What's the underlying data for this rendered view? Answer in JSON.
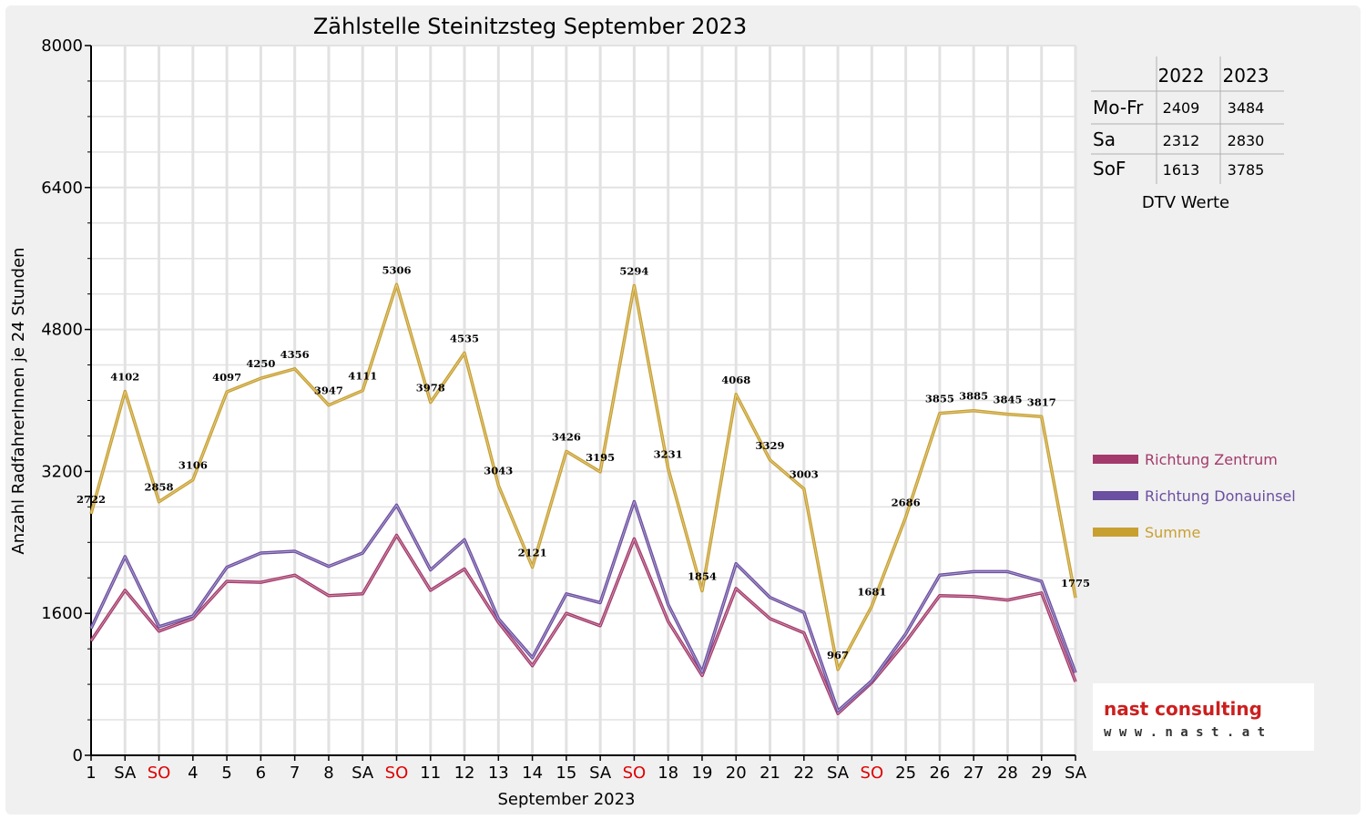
{
  "chart_data": {
    "type": "line",
    "title": "Zählstelle Steinitzsteg September 2023",
    "xlabel": "September 2023",
    "ylabel": "Anzahl RadfahrerInnen je 24 Stunden",
    "ylim": [
      0,
      8000
    ],
    "yticks": [
      "0",
      "1600",
      "3200",
      "4800",
      "6400",
      "8000"
    ],
    "grid": true,
    "legend_position": "right",
    "categories": [
      "1",
      "SA",
      "SO",
      "4",
      "5",
      "6",
      "7",
      "8",
      "SA",
      "SO",
      "11",
      "12",
      "13",
      "14",
      "15",
      "SA",
      "SO",
      "18",
      "19",
      "20",
      "21",
      "22",
      "SA",
      "SO",
      "25",
      "26",
      "27",
      "28",
      "29",
      "SA"
    ],
    "highlight_categories": [
      "SO"
    ],
    "highlight_color": "#e00000",
    "series": [
      {
        "name": "Richtung Zentrum",
        "color": "#a33a6b",
        "values": [
          1290,
          1860,
          1400,
          1540,
          1960,
          1950,
          2030,
          1800,
          1820,
          2480,
          1860,
          2100,
          1500,
          1010,
          1600,
          1460,
          2440,
          1510,
          900,
          1880,
          1540,
          1380,
          470,
          820,
          1280,
          1800,
          1790,
          1750,
          1830,
          830
        ]
      },
      {
        "name": "Richtung Donauinsel",
        "color": "#6b4fa0",
        "values": [
          1430,
          2240,
          1450,
          1570,
          2120,
          2280,
          2300,
          2130,
          2280,
          2820,
          2090,
          2430,
          1540,
          1100,
          1820,
          1720,
          2860,
          1700,
          940,
          2160,
          1780,
          1610,
          500,
          840,
          1370,
          2030,
          2070,
          2070,
          1960,
          930
        ]
      },
      {
        "name": "Summe",
        "color": "#c8a030",
        "labels": [
          "2722",
          "4102",
          "2858",
          "3106",
          "4097",
          "4250",
          "4356",
          "3947",
          "4111",
          "5306",
          "3978",
          "4535",
          "3043",
          "2121",
          "3426",
          "3195",
          "5294",
          "3231",
          "1854",
          "4068",
          "3329",
          "3003",
          "967",
          "1681",
          "2686",
          "3855",
          "3885",
          "3845",
          "3817",
          "1775"
        ],
        "values": [
          2722,
          4102,
          2858,
          3106,
          4097,
          4250,
          4356,
          3947,
          4111,
          5306,
          3978,
          4535,
          3043,
          2121,
          3426,
          3195,
          5294,
          3231,
          1854,
          4068,
          3329,
          3003,
          967,
          1681,
          2686,
          3855,
          3885,
          3845,
          3817,
          1775
        ]
      }
    ]
  },
  "dtv_table": {
    "headers": [
      "",
      "2022",
      "2023"
    ],
    "rows": [
      {
        "label": "Mo-Fr",
        "v2022": "2409",
        "v2023": "3484"
      },
      {
        "label": "Sa",
        "v2022": "2312",
        "v2023": "2830"
      },
      {
        "label": "SoF",
        "v2022": "1613",
        "v2023": "3785"
      }
    ],
    "caption": "DTV Werte"
  },
  "logo": {
    "name": "nast consulting",
    "url": "w w w . n a s t . a t"
  }
}
